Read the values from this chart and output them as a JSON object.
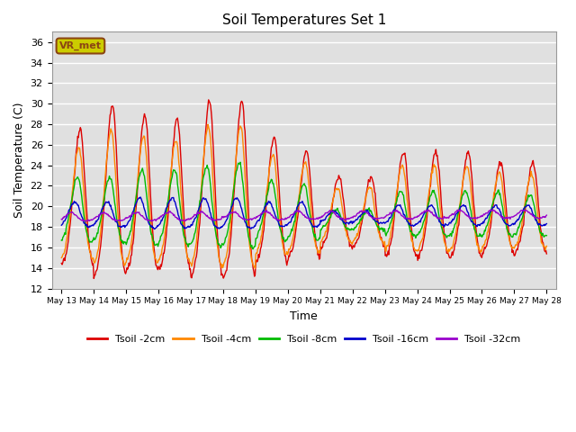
{
  "title": "Soil Temperatures Set 1",
  "xlabel": "Time",
  "ylabel": "Soil Temperature (C)",
  "ylim": [
    12,
    37
  ],
  "yticks": [
    12,
    14,
    16,
    18,
    20,
    22,
    24,
    26,
    28,
    30,
    32,
    34,
    36
  ],
  "background_color": "#e0e0e0",
  "annotation_text": "VR_met",
  "annotation_bg": "#cccc00",
  "annotation_border": "#8B4513",
  "series_colors": {
    "Tsoil -2cm": "#dd0000",
    "Tsoil -4cm": "#ff8800",
    "Tsoil -8cm": "#00bb00",
    "Tsoil -16cm": "#0000cc",
    "Tsoil -32cm": "#9900cc"
  },
  "xtick_labels": [
    "May 13",
    "May 14",
    "May 15",
    "May 16",
    "May 17",
    "May 18",
    "May 19",
    "May 20",
    "May 21",
    "May 22",
    "May 23",
    "May 24",
    "May 25",
    "May 26",
    "May 27",
    "May 28"
  ]
}
